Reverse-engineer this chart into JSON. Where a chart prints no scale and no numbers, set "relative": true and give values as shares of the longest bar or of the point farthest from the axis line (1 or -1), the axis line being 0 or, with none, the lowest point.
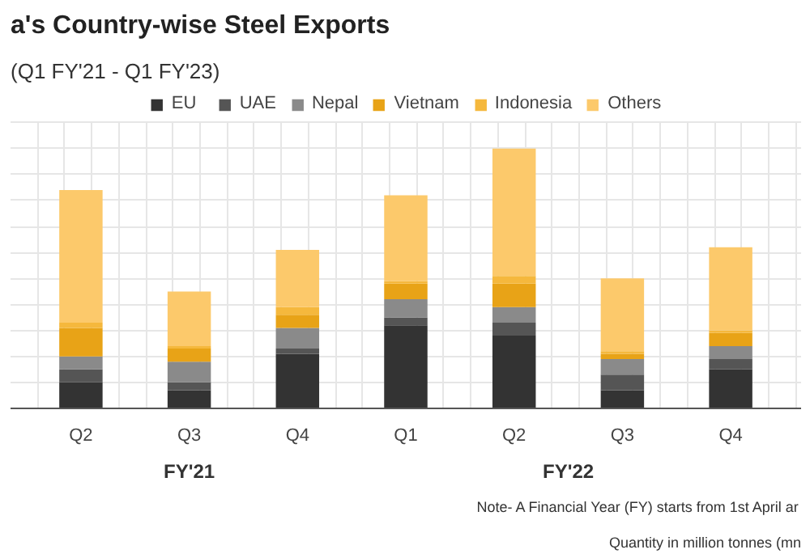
{
  "chart_data": {
    "type": "bar",
    "title": "a's Country-wise Steel Exports",
    "subtitle": "(Q1 FY'21 - Q1 FY'23)",
    "categories": [
      "Q2",
      "Q3",
      "Q4",
      "Q1",
      "Q2",
      "Q3",
      "Q4"
    ],
    "stacked": true,
    "relative": true,
    "grid": true,
    "legend": "top",
    "series": [
      {
        "name": "EU",
        "color": "#333333",
        "values": [
          0.1,
          0.07,
          0.21,
          0.32,
          0.28,
          0.07,
          0.15
        ]
      },
      {
        "name": "UAE",
        "color": "#555555",
        "values": [
          0.05,
          0.03,
          0.02,
          0.03,
          0.05,
          0.06,
          0.04
        ]
      },
      {
        "name": "Nepal",
        "color": "#8a8a8a",
        "values": [
          0.05,
          0.08,
          0.08,
          0.07,
          0.06,
          0.06,
          0.05
        ]
      },
      {
        "name": "Vietnam",
        "color": "#e8a317",
        "values": [
          0.11,
          0.05,
          0.05,
          0.06,
          0.09,
          0.02,
          0.05
        ]
      },
      {
        "name": "Indonesia",
        "color": "#f5b83d",
        "values": [
          0.02,
          0.01,
          0.03,
          0.01,
          0.03,
          0.01,
          0.01
        ]
      },
      {
        "name": "Others",
        "color": "#fcc96b",
        "values": [
          0.51,
          0.21,
          0.22,
          0.33,
          0.49,
          0.28,
          0.32
        ]
      }
    ],
    "annotations": [
      "FY'21",
      "FY'22",
      "Note- A Financial Year (FY) starts from 1st April ar",
      "Quantity in million tonnes (mn"
    ]
  }
}
